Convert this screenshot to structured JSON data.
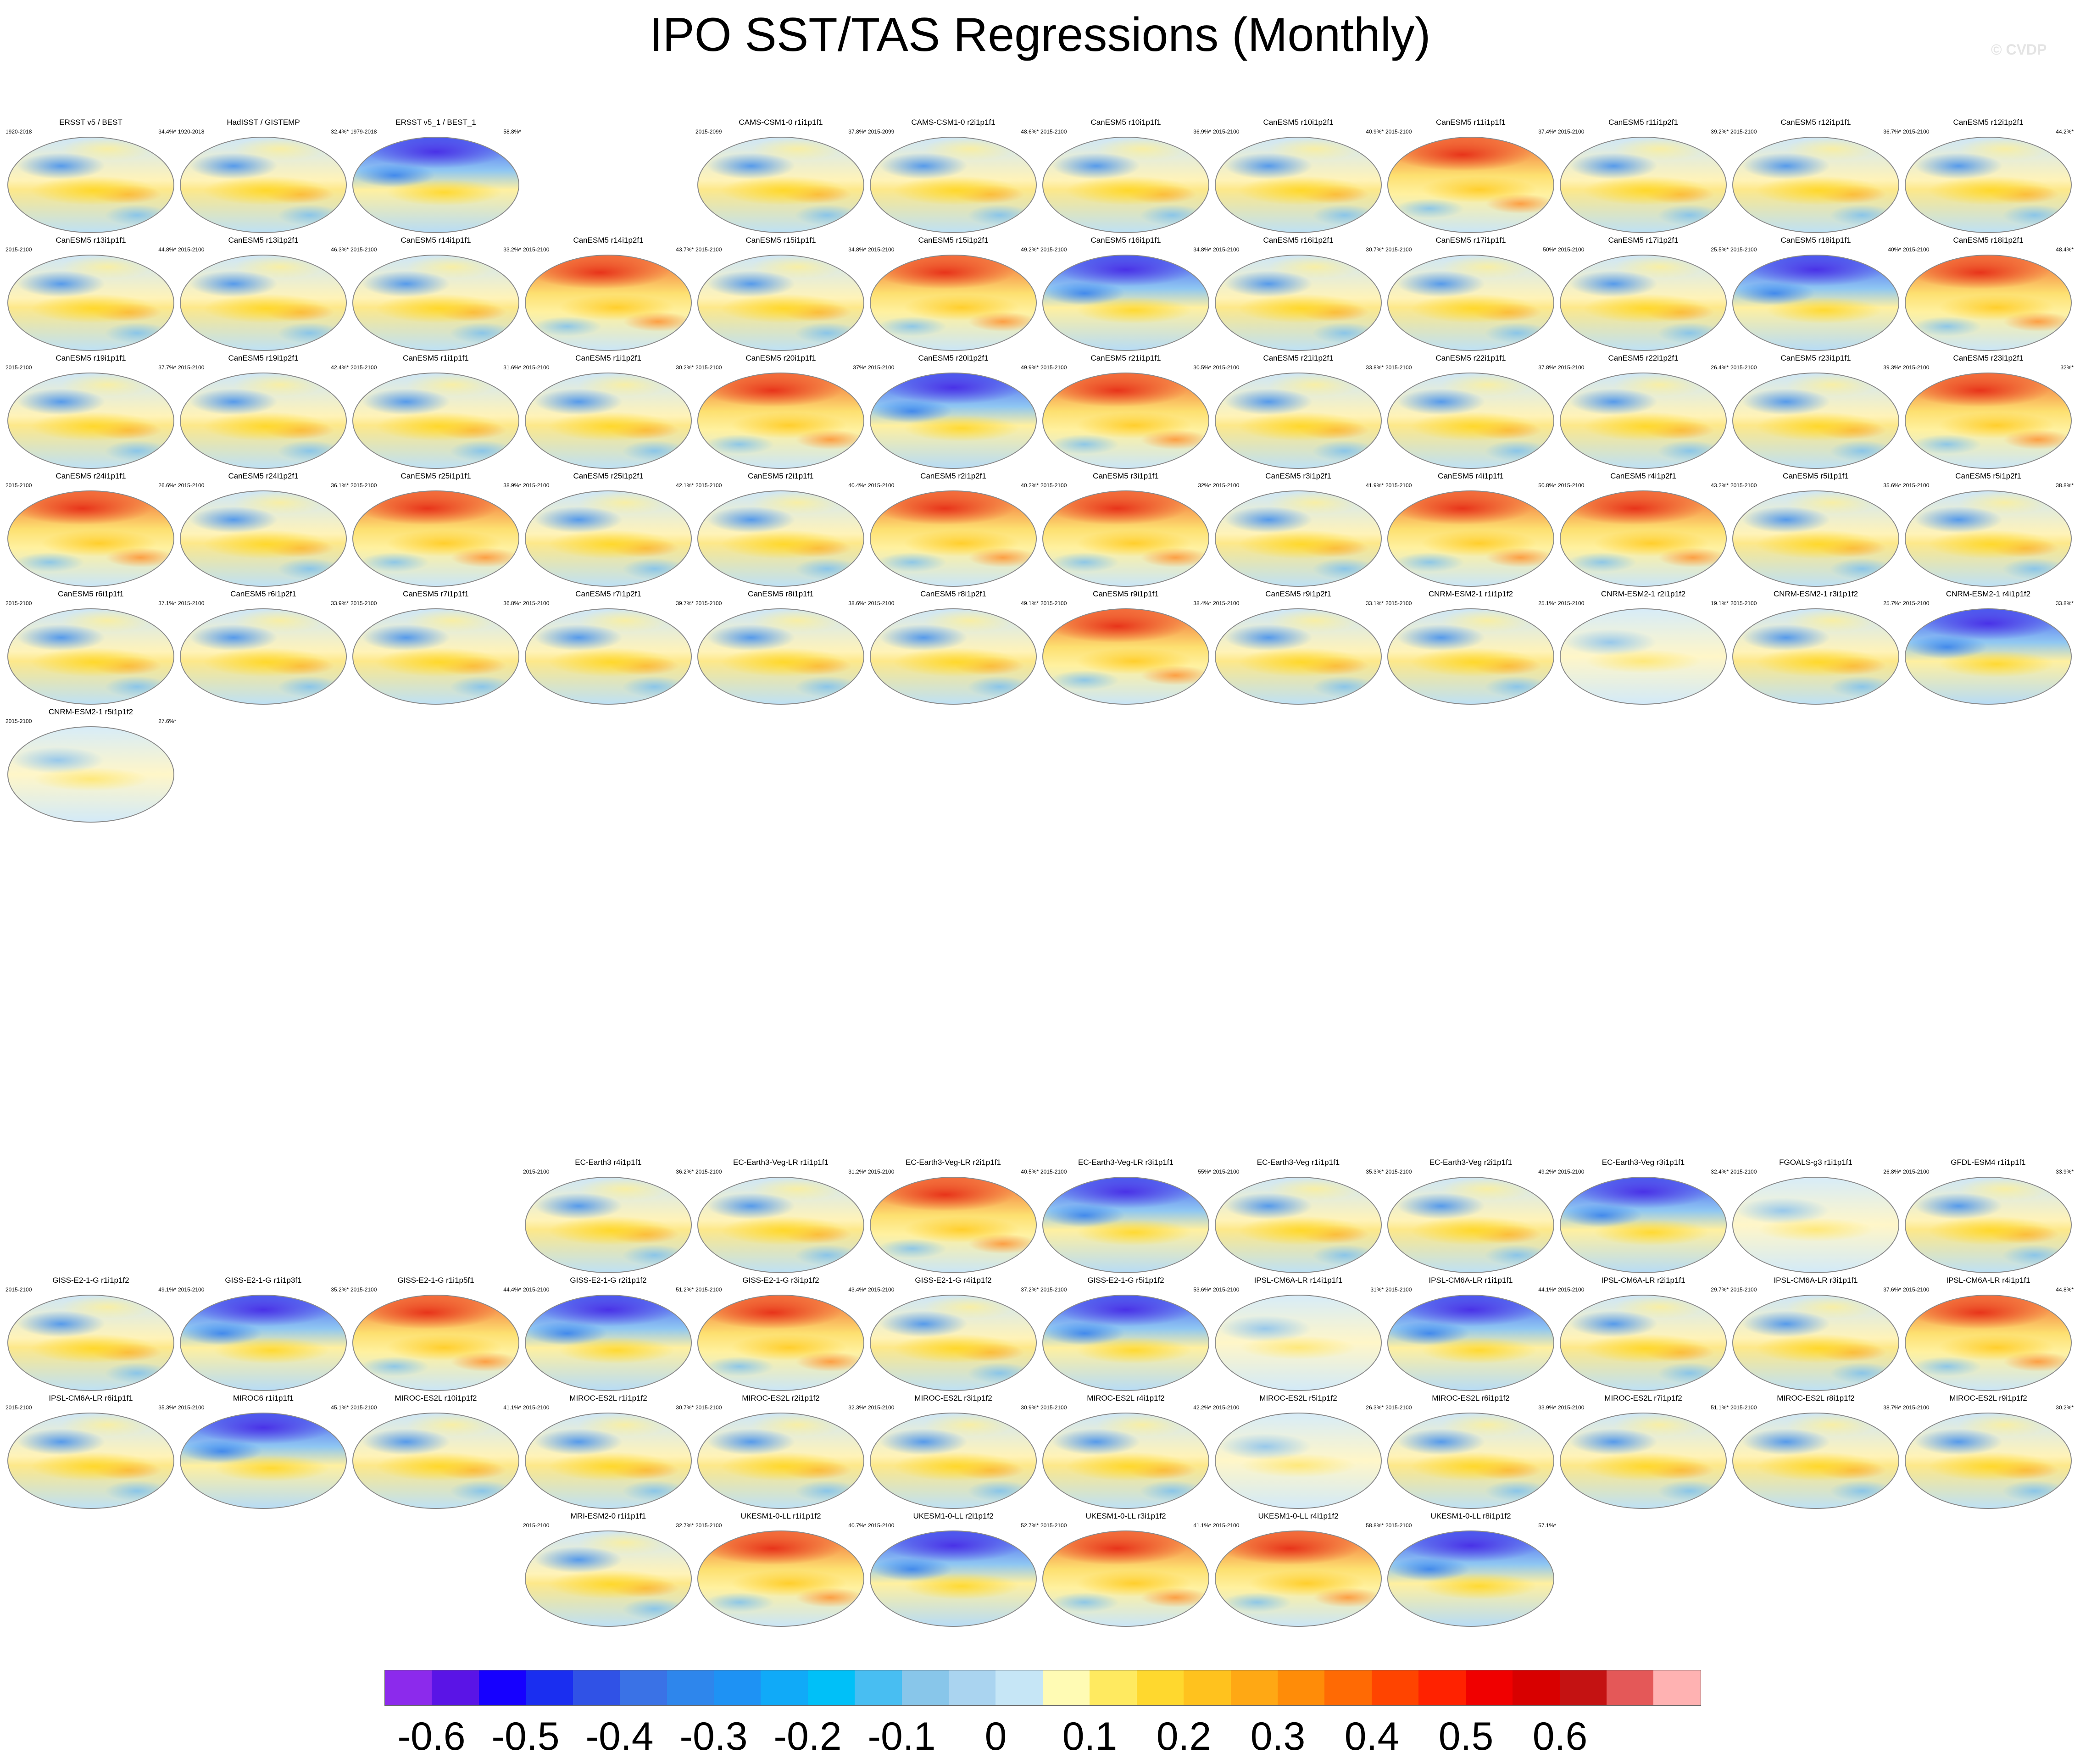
{
  "title": "IPO SST/TAS Regressions (Monthly)",
  "watermark": "© CVDP",
  "panels_top": [
    {
      "title": "ERSST v5 / BEST",
      "period": "1920-2018",
      "pct": "34.4%*",
      "style": "normal"
    },
    {
      "title": "HadISST / GISTEMP",
      "period": "1920-2018",
      "pct": "32.4%*",
      "style": "normal"
    },
    {
      "title": "ERSST v5_1 / BEST_1",
      "period": "1979-2018",
      "pct": "58.8%*",
      "style": "cool"
    },
    {
      "title": "CAMS-CSM1-0 r1i1p1f1",
      "period": "2015-2099",
      "pct": "37.8%*",
      "style": "normal"
    },
    {
      "title": "CAMS-CSM1-0 r2i1p1f1",
      "period": "2015-2099",
      "pct": "48.6%*",
      "style": "normal"
    },
    {
      "title": "CanESM5 r10i1p1f1",
      "period": "2015-2100",
      "pct": "36.9%*",
      "style": "normal"
    },
    {
      "title": "CanESM5 r10i1p2f1",
      "period": "2015-2100",
      "pct": "40.9%*",
      "style": "normal"
    },
    {
      "title": "CanESM5 r11i1p1f1",
      "period": "2015-2100",
      "pct": "37.4%*",
      "style": "warm"
    },
    {
      "title": "CanESM5 r11i1p2f1",
      "period": "2015-2100",
      "pct": "39.2%*",
      "style": "normal"
    },
    {
      "title": "CanESM5 r12i1p1f1",
      "period": "2015-2100",
      "pct": "36.7%*",
      "style": "normal"
    },
    {
      "title": "CanESM5 r12i1p2f1",
      "period": "2015-2100",
      "pct": "44.2%*",
      "style": "normal"
    },
    {
      "title": "CanESM5 r13i1p1f1",
      "period": "2015-2100",
      "pct": "44.8%*",
      "style": "normal"
    },
    {
      "title": "CanESM5 r13i1p2f1",
      "period": "2015-2100",
      "pct": "46.3%*",
      "style": "normal"
    },
    {
      "title": "CanESM5 r14i1p1f1",
      "period": "2015-2100",
      "pct": "33.2%*",
      "style": "normal"
    },
    {
      "title": "CanESM5 r14i1p2f1",
      "period": "2015-2100",
      "pct": "43.7%*",
      "style": "warm"
    },
    {
      "title": "CanESM5 r15i1p1f1",
      "period": "2015-2100",
      "pct": "34.8%*",
      "style": "normal"
    },
    {
      "title": "CanESM5 r15i1p2f1",
      "period": "2015-2100",
      "pct": "49.2%*",
      "style": "warm"
    },
    {
      "title": "CanESM5 r16i1p1f1",
      "period": "2015-2100",
      "pct": "34.8%*",
      "style": "cool"
    },
    {
      "title": "CanESM5 r16i1p2f1",
      "period": "2015-2100",
      "pct": "30.7%*",
      "style": "normal"
    },
    {
      "title": "CanESM5 r17i1p1f1",
      "period": "2015-2100",
      "pct": "50%*",
      "style": "normal"
    },
    {
      "title": "CanESM5 r17i1p2f1",
      "period": "2015-2100",
      "pct": "25.5%*",
      "style": "normal"
    },
    {
      "title": "CanESM5 r18i1p1f1",
      "period": "2015-2100",
      "pct": "40%*",
      "style": "cool"
    },
    {
      "title": "CanESM5 r18i1p2f1",
      "period": "2015-2100",
      "pct": "48.4%*",
      "style": "warm"
    },
    {
      "title": "CanESM5 r19i1p1f1",
      "period": "2015-2100",
      "pct": "37.7%*",
      "style": "normal"
    },
    {
      "title": "CanESM5 r19i1p2f1",
      "period": "2015-2100",
      "pct": "42.4%*",
      "style": "normal"
    },
    {
      "title": "CanESM5 r1i1p1f1",
      "period": "2015-2100",
      "pct": "31.6%*",
      "style": "normal"
    },
    {
      "title": "CanESM5 r1i1p2f1",
      "period": "2015-2100",
      "pct": "30.2%*",
      "style": "normal"
    },
    {
      "title": "CanESM5 r20i1p1f1",
      "period": "2015-2100",
      "pct": "37%*",
      "style": "warm"
    },
    {
      "title": "CanESM5 r20i1p2f1",
      "period": "2015-2100",
      "pct": "49.9%*",
      "style": "cool"
    },
    {
      "title": "CanESM5 r21i1p1f1",
      "period": "2015-2100",
      "pct": "30.5%*",
      "style": "warm"
    },
    {
      "title": "CanESM5 r21i1p2f1",
      "period": "2015-2100",
      "pct": "33.8%*",
      "style": "normal"
    },
    {
      "title": "CanESM5 r22i1p1f1",
      "period": "2015-2100",
      "pct": "37.8%*",
      "style": "normal"
    },
    {
      "title": "CanESM5 r22i1p2f1",
      "period": "2015-2100",
      "pct": "26.4%*",
      "style": "normal"
    },
    {
      "title": "CanESM5 r23i1p1f1",
      "period": "2015-2100",
      "pct": "39.3%*",
      "style": "normal"
    },
    {
      "title": "CanESM5 r23i1p2f1",
      "period": "2015-2100",
      "pct": "32%*",
      "style": "warm"
    },
    {
      "title": "CanESM5 r24i1p1f1",
      "period": "2015-2100",
      "pct": "26.6%*",
      "style": "warm"
    },
    {
      "title": "CanESM5 r24i1p2f1",
      "period": "2015-2100",
      "pct": "36.1%*",
      "style": "normal"
    },
    {
      "title": "CanESM5 r25i1p1f1",
      "period": "2015-2100",
      "pct": "38.9%*",
      "style": "warm"
    },
    {
      "title": "CanESM5 r25i1p2f1",
      "period": "2015-2100",
      "pct": "42.1%*",
      "style": "normal"
    },
    {
      "title": "CanESM5 r2i1p1f1",
      "period": "2015-2100",
      "pct": "40.4%*",
      "style": "normal"
    },
    {
      "title": "CanESM5 r2i1p2f1",
      "period": "2015-2100",
      "pct": "40.2%*",
      "style": "warm"
    },
    {
      "title": "CanESM5 r3i1p1f1",
      "period": "2015-2100",
      "pct": "32%*",
      "style": "warm"
    },
    {
      "title": "CanESM5 r3i1p2f1",
      "period": "2015-2100",
      "pct": "41.9%*",
      "style": "normal"
    },
    {
      "title": "CanESM5 r4i1p1f1",
      "period": "2015-2100",
      "pct": "50.8%*",
      "style": "warm"
    },
    {
      "title": "CanESM5 r4i1p2f1",
      "period": "2015-2100",
      "pct": "43.2%*",
      "style": "warm"
    },
    {
      "title": "CanESM5 r5i1p1f1",
      "period": "2015-2100",
      "pct": "35.6%*",
      "style": "normal"
    },
    {
      "title": "CanESM5 r5i1p2f1",
      "period": "2015-2100",
      "pct": "38.8%*",
      "style": "normal"
    },
    {
      "title": "CanESM5 r6i1p1f1",
      "period": "2015-2100",
      "pct": "37.1%*",
      "style": "normal"
    },
    {
      "title": "CanESM5 r6i1p2f1",
      "period": "2015-2100",
      "pct": "33.9%*",
      "style": "normal"
    },
    {
      "title": "CanESM5 r7i1p1f1",
      "period": "2015-2100",
      "pct": "36.8%*",
      "style": "normal"
    },
    {
      "title": "CanESM5 r7i1p2f1",
      "period": "2015-2100",
      "pct": "39.7%*",
      "style": "normal"
    },
    {
      "title": "CanESM5 r8i1p1f1",
      "period": "2015-2100",
      "pct": "38.6%*",
      "style": "normal"
    },
    {
      "title": "CanESM5 r8i1p2f1",
      "period": "2015-2100",
      "pct": "49.1%*",
      "style": "normal"
    },
    {
      "title": "CanESM5 r9i1p1f1",
      "period": "2015-2100",
      "pct": "38.4%*",
      "style": "warm"
    },
    {
      "title": "CanESM5 r9i1p2f1",
      "period": "2015-2100",
      "pct": "33.1%*",
      "style": "normal"
    },
    {
      "title": "CNRM-ESM2-1 r1i1p1f2",
      "period": "2015-2100",
      "pct": "25.1%*",
      "style": "normal"
    },
    {
      "title": "CNRM-ESM2-1 r2i1p1f2",
      "period": "2015-2100",
      "pct": "19.1%*",
      "style": "pale"
    },
    {
      "title": "CNRM-ESM2-1 r3i1p1f2",
      "period": "2015-2100",
      "pct": "25.7%*",
      "style": "normal"
    },
    {
      "title": "CNRM-ESM2-1 r4i1p1f2",
      "period": "2015-2100",
      "pct": "33.8%*",
      "style": "cool"
    },
    {
      "title": "CNRM-ESM2-1 r5i1p1f2",
      "period": "2015-2100",
      "pct": "27.6%*",
      "style": "pale"
    }
  ],
  "panels_bottom": [
    {
      "title": "EC-Earth3 r4i1p1f1",
      "period": "2015-2100",
      "pct": "36.2%*",
      "style": "normal"
    },
    {
      "title": "EC-Earth3-Veg-LR r1i1p1f1",
      "period": "2015-2100",
      "pct": "31.2%*",
      "style": "normal"
    },
    {
      "title": "EC-Earth3-Veg-LR r2i1p1f1",
      "period": "2015-2100",
      "pct": "40.5%*",
      "style": "warm"
    },
    {
      "title": "EC-Earth3-Veg-LR r3i1p1f1",
      "period": "2015-2100",
      "pct": "55%*",
      "style": "cool"
    },
    {
      "title": "EC-Earth3-Veg r1i1p1f1",
      "period": "2015-2100",
      "pct": "35.3%*",
      "style": "normal"
    },
    {
      "title": "EC-Earth3-Veg r2i1p1f1",
      "period": "2015-2100",
      "pct": "49.2%*",
      "style": "normal"
    },
    {
      "title": "EC-Earth3-Veg r3i1p1f1",
      "period": "2015-2100",
      "pct": "32.4%*",
      "style": "cool"
    },
    {
      "title": "FGOALS-g3 r1i1p1f1",
      "period": "2015-2100",
      "pct": "26.8%*",
      "style": "pale"
    },
    {
      "title": "GFDL-ESM4 r1i1p1f1",
      "period": "2015-2100",
      "pct": "33.9%*",
      "style": "normal"
    },
    {
      "title": "GISS-E2-1-G r1i1p1f2",
      "period": "2015-2100",
      "pct": "49.1%*",
      "style": "normal"
    },
    {
      "title": "GISS-E2-1-G r1i1p3f1",
      "period": "2015-2100",
      "pct": "35.2%*",
      "style": "cool"
    },
    {
      "title": "GISS-E2-1-G r1i1p5f1",
      "period": "2015-2100",
      "pct": "44.4%*",
      "style": "warm"
    },
    {
      "title": "GISS-E2-1-G r2i1p1f2",
      "period": "2015-2100",
      "pct": "51.2%*",
      "style": "cool"
    },
    {
      "title": "GISS-E2-1-G r3i1p1f2",
      "period": "2015-2100",
      "pct": "43.4%*",
      "style": "warm"
    },
    {
      "title": "GISS-E2-1-G r4i1p1f2",
      "period": "2015-2100",
      "pct": "37.2%*",
      "style": "normal"
    },
    {
      "title": "GISS-E2-1-G r5i1p1f2",
      "period": "2015-2100",
      "pct": "53.6%*",
      "style": "cool"
    },
    {
      "title": "IPSL-CM6A-LR r14i1p1f1",
      "period": "2015-2100",
      "pct": "31%*",
      "style": "pale"
    },
    {
      "title": "IPSL-CM6A-LR r1i1p1f1",
      "period": "2015-2100",
      "pct": "44.1%*",
      "style": "cool"
    },
    {
      "title": "IPSL-CM6A-LR r2i1p1f1",
      "period": "2015-2100",
      "pct": "29.7%*",
      "style": "normal"
    },
    {
      "title": "IPSL-CM6A-LR r3i1p1f1",
      "period": "2015-2100",
      "pct": "37.6%*",
      "style": "normal"
    },
    {
      "title": "IPSL-CM6A-LR r4i1p1f1",
      "period": "2015-2100",
      "pct": "44.8%*",
      "style": "warm"
    },
    {
      "title": "IPSL-CM6A-LR r6i1p1f1",
      "period": "2015-2100",
      "pct": "35.3%*",
      "style": "normal"
    },
    {
      "title": "MIROC6 r1i1p1f1",
      "period": "2015-2100",
      "pct": "45.1%*",
      "style": "cool"
    },
    {
      "title": "MIROC-ES2L r10i1p1f2",
      "period": "2015-2100",
      "pct": "41.1%*",
      "style": "normal"
    },
    {
      "title": "MIROC-ES2L r1i1p1f2",
      "period": "2015-2100",
      "pct": "30.7%*",
      "style": "normal"
    },
    {
      "title": "MIROC-ES2L r2i1p1f2",
      "period": "2015-2100",
      "pct": "32.3%*",
      "style": "normal"
    },
    {
      "title": "MIROC-ES2L r3i1p1f2",
      "period": "2015-2100",
      "pct": "30.9%*",
      "style": "normal"
    },
    {
      "title": "MIROC-ES2L r4i1p1f2",
      "period": "2015-2100",
      "pct": "42.2%*",
      "style": "normal"
    },
    {
      "title": "MIROC-ES2L r5i1p1f2",
      "period": "2015-2100",
      "pct": "26.3%*",
      "style": "pale"
    },
    {
      "title": "MIROC-ES2L r6i1p1f2",
      "period": "2015-2100",
      "pct": "33.9%*",
      "style": "normal"
    },
    {
      "title": "MIROC-ES2L r7i1p1f2",
      "period": "2015-2100",
      "pct": "51.1%*",
      "style": "normal"
    },
    {
      "title": "MIROC-ES2L r8i1p1f2",
      "period": "2015-2100",
      "pct": "38.7%*",
      "style": "normal"
    },
    {
      "title": "MIROC-ES2L r9i1p1f2",
      "period": "2015-2100",
      "pct": "30.2%*",
      "style": "normal"
    },
    {
      "title": "MRI-ESM2-0 r1i1p1f1",
      "period": "2015-2100",
      "pct": "32.7%*",
      "style": "normal"
    },
    {
      "title": "UKESM1-0-LL r1i1p1f2",
      "period": "2015-2100",
      "pct": "40.7%*",
      "style": "warm"
    },
    {
      "title": "UKESM1-0-LL r2i1p1f2",
      "period": "2015-2100",
      "pct": "52.7%*",
      "style": "cool"
    },
    {
      "title": "UKESM1-0-LL r3i1p1f2",
      "period": "2015-2100",
      "pct": "41.1%*",
      "style": "warm"
    },
    {
      "title": "UKESM1-0-LL r4i1p1f2",
      "period": "2015-2100",
      "pct": "58.8%*",
      "style": "warm"
    },
    {
      "title": "UKESM1-0-LL r8i1p1f2",
      "period": "2015-2100",
      "pct": "57.1%*",
      "style": "cool"
    }
  ],
  "colorbar": {
    "colors": [
      "#8c2aec",
      "#5a14e6",
      "#1600ff",
      "#1a2ef0",
      "#3052e6",
      "#3a72e6",
      "#2e86ec",
      "#1e92f4",
      "#10aaf8",
      "#00c0f8",
      "#48bef2",
      "#88c6ea",
      "#aad4f0",
      "#c6e6f6",
      "#fffbb4",
      "#ffea60",
      "#ffd82e",
      "#ffc21e",
      "#ffa814",
      "#ff8c08",
      "#ff6a04",
      "#ff4400",
      "#ff2200",
      "#f00000",
      "#d80000",
      "#c41212",
      "#e45858",
      "#ffb2b2"
    ],
    "labels": [
      "-0.6",
      "-0.5",
      "-0.4",
      "-0.3",
      "-0.2",
      "-0.1",
      "0",
      "0.1",
      "0.2",
      "0.3",
      "0.4",
      "0.5",
      "0.6"
    ]
  }
}
